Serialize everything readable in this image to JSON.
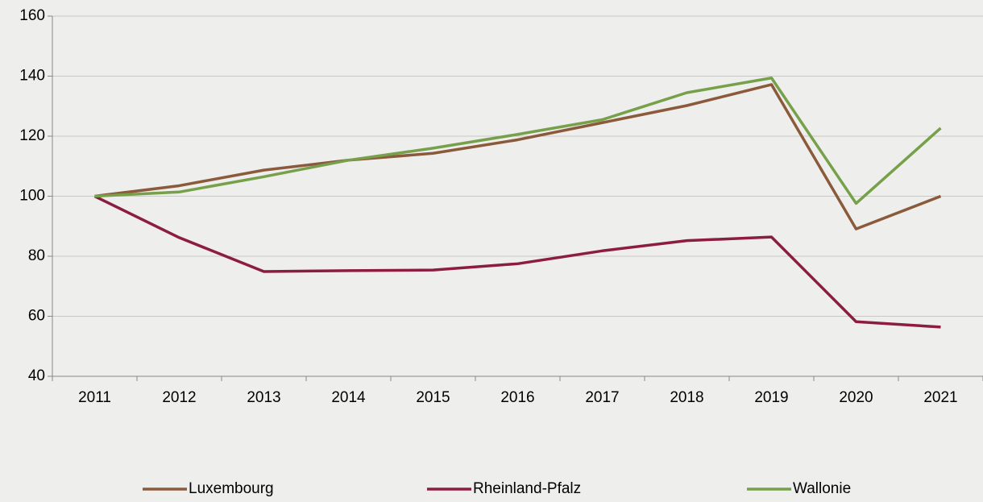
{
  "chart_data": {
    "type": "line",
    "categories": [
      "2011",
      "2012",
      "2013",
      "2014",
      "2015",
      "2016",
      "2017",
      "2018",
      "2019",
      "2020",
      "2021"
    ],
    "series": [
      {
        "name": "Luxembourg",
        "color": "#8a5a3b",
        "values": [
          100,
          103.5,
          108.7,
          112,
          114.3,
          118.8,
          124.5,
          130.2,
          137.2,
          89.1,
          100
        ]
      },
      {
        "name": "Rheinland-Pfalz",
        "color": "#8c1d3e",
        "values": [
          100,
          86.2,
          74.9,
          75.2,
          75.4,
          77.5,
          81.8,
          85.2,
          86.4,
          58.2,
          56.4
        ]
      },
      {
        "name": "Wallonie",
        "color": "#77a04a",
        "values": [
          100,
          101.4,
          106.5,
          112,
          116,
          120.6,
          125.5,
          134.5,
          139.4,
          97.6,
          122.7
        ]
      }
    ],
    "ylim": [
      40,
      160
    ],
    "yticks": [
      40,
      60,
      80,
      100,
      120,
      140,
      160
    ],
    "grid": true,
    "legend": "bottom"
  }
}
